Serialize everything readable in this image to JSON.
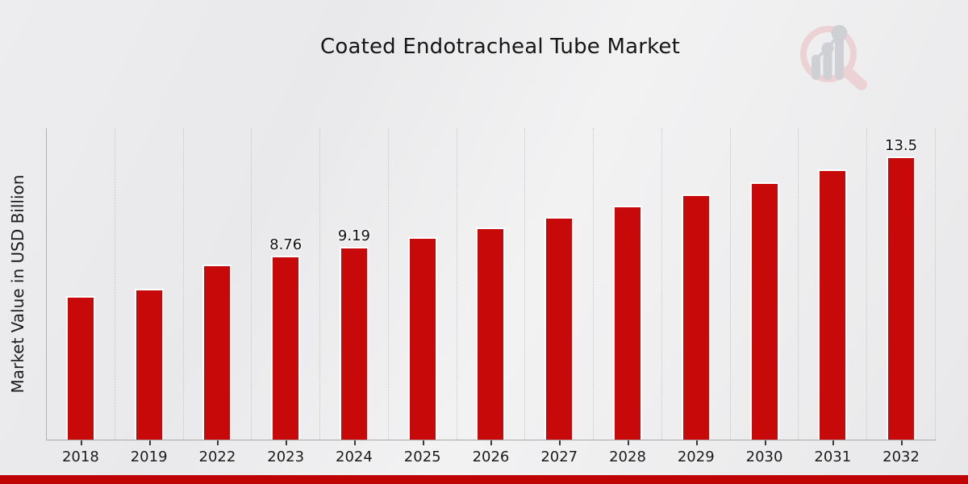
{
  "page": {
    "title": "Coated Endotracheal Tube Market"
  },
  "chart_data": {
    "type": "bar",
    "title": "Coated Endotracheal Tube Market",
    "xlabel": "",
    "ylabel": "Market Value in USD Billion",
    "categories": [
      "2018",
      "2019",
      "2022",
      "2023",
      "2024",
      "2025",
      "2026",
      "2027",
      "2028",
      "2029",
      "2030",
      "2031",
      "2032"
    ],
    "values": [
      6.85,
      7.2,
      8.35,
      8.76,
      9.19,
      9.64,
      10.12,
      10.62,
      11.14,
      11.69,
      12.27,
      12.87,
      13.5
    ],
    "value_labels": {
      "2023": "8.76",
      "2024": "9.19",
      "2032": "13.5"
    },
    "ylim": [
      0,
      14.85
    ],
    "grid": "vertical-dotted",
    "legend": "none",
    "bar_color": "#c70909",
    "bar_edge_color": "#ffffff",
    "accent_band_color": "#bf0303",
    "watermark_ring_color": "#ecd2d4",
    "watermark_bar_color": "#ced0d4"
  }
}
